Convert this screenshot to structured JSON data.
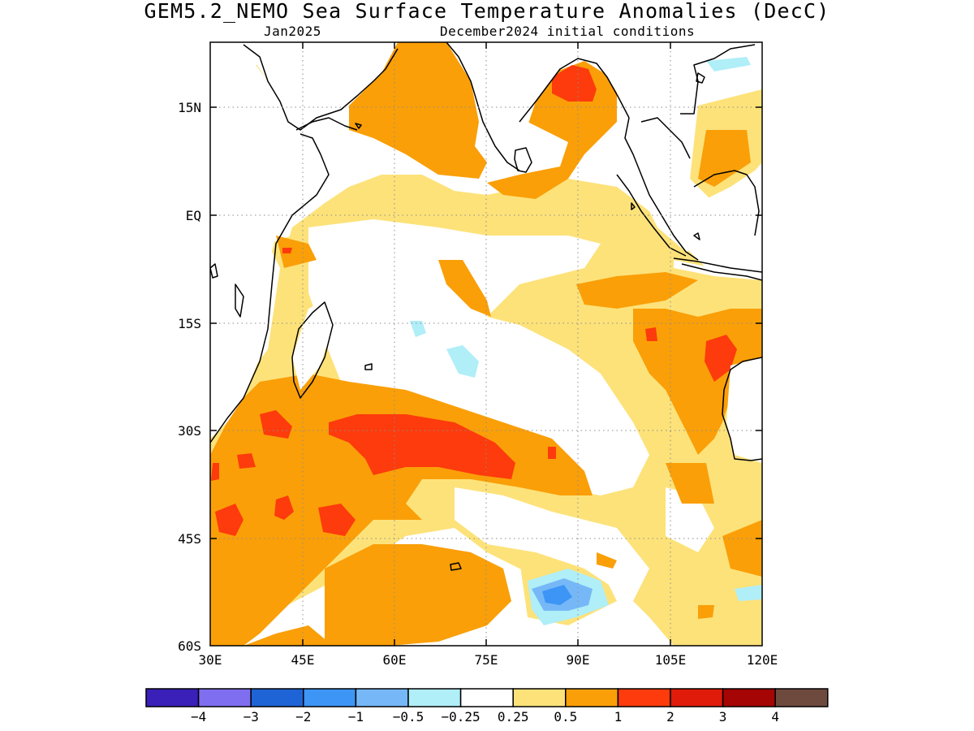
{
  "title": "GEM5.2_NEMO Sea Surface Temperature Anomalies (DecC)",
  "subtitle_left": "Jan2025",
  "subtitle_right": "December2024 initial conditions",
  "map": {
    "lon_range": [
      30,
      120
    ],
    "lat_range": [
      -60,
      24
    ],
    "lon_ticks": [
      "30E",
      "45E",
      "60E",
      "75E",
      "90E",
      "105E",
      "120E"
    ],
    "lat_ticks": [
      "15N",
      "EQ",
      "15S",
      "30S",
      "45S",
      "60S"
    ],
    "grid": true
  },
  "colorbar": {
    "colors": [
      "#3a1fb8",
      "#7f6ef0",
      "#1f64d6",
      "#3d95f5",
      "#76b8f7",
      "#b0eef8",
      "#ffffff",
      "#fde27a",
      "#fa9f08",
      "#fd3b0c",
      "#e01b0a",
      "#a50505",
      "#6e4a3e"
    ],
    "labels": [
      "-4",
      "-3",
      "-2",
      "-1",
      "-0.5",
      "-0.25",
      "0.25",
      "0.5",
      "1",
      "2",
      "3",
      "4"
    ]
  }
}
